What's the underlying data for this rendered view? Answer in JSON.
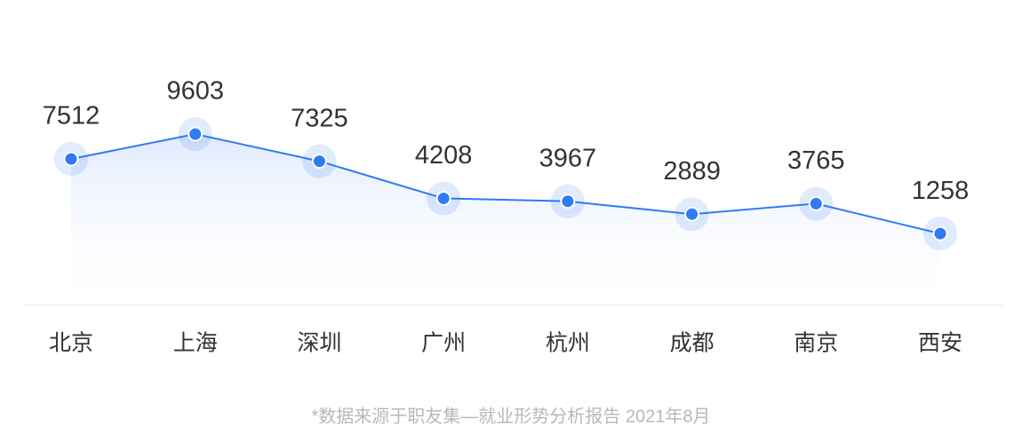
{
  "chart_data": {
    "type": "line",
    "categories": [
      "北京",
      "上海",
      "深圳",
      "广州",
      "杭州",
      "成都",
      "南京",
      "西安"
    ],
    "values": [
      7512,
      9603,
      7325,
      4208,
      3967,
      2889,
      3765,
      1258
    ],
    "color": "#2f7bf2",
    "source_note": "*数据来源于职友集—就业形势分析报告 2021年8月"
  }
}
